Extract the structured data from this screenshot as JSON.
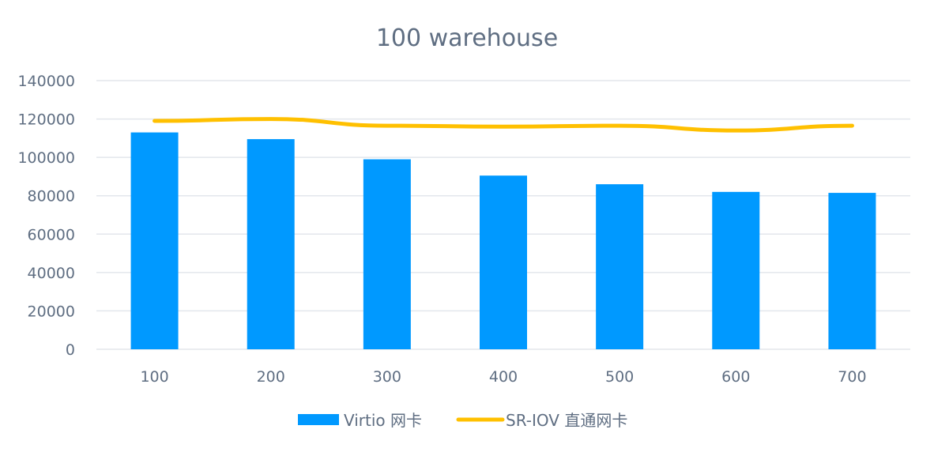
{
  "chart_data": {
    "type": "bar",
    "title": "100 warehouse",
    "xlabel": "",
    "ylabel": "",
    "categories": [
      "100",
      "200",
      "300",
      "400",
      "500",
      "600",
      "700"
    ],
    "ylim": [
      0,
      140000
    ],
    "yticks": [
      0,
      20000,
      40000,
      60000,
      80000,
      100000,
      120000,
      140000
    ],
    "grid": true,
    "legend_position": "bottom",
    "series": [
      {
        "name": "Virtio 网卡",
        "type": "bar",
        "color": "#0099ff",
        "values": [
          113000,
          109500,
          99000,
          90500,
          86000,
          82000,
          81500
        ]
      },
      {
        "name": "SR-IOV 直通网卡",
        "type": "line",
        "color": "#ffc000",
        "values": [
          119000,
          120000,
          116500,
          116000,
          116500,
          114000,
          116500
        ]
      }
    ]
  }
}
